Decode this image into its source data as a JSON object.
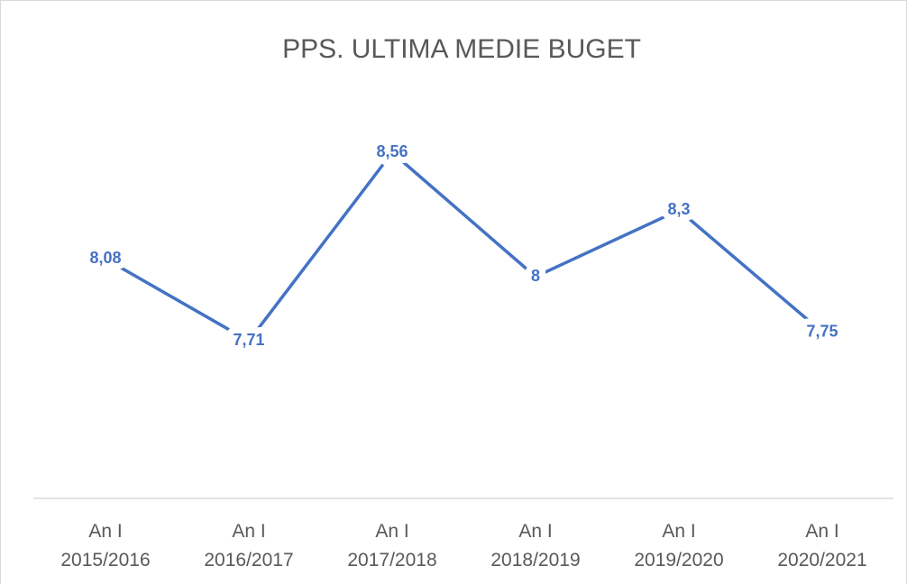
{
  "chart_data": {
    "type": "line",
    "title": "PPS. ULTIMA MEDIE BUGET",
    "categories": [
      "An I\n2015/2016",
      "An I\n2016/2017",
      "An I\n2017/2018",
      "An I\n2018/2019",
      "An I\n2019/2020",
      "An I\n2020/2021"
    ],
    "series": [
      {
        "name": "PPS. ULTIMA MEDIE BUGET",
        "color": "#4472c4",
        "values": [
          8.08,
          7.71,
          8.56,
          8,
          8.3,
          7.75
        ],
        "value_labels": [
          "8,08",
          "7,71",
          "8,56",
          "8",
          "8,3",
          "7,75"
        ]
      }
    ],
    "ylim": [
      7,
      9
    ]
  }
}
